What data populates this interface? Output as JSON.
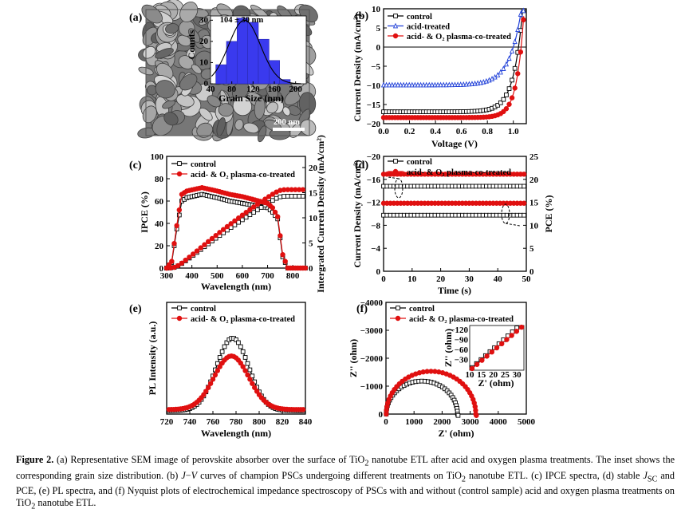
{
  "panel_labels": [
    "(a)",
    "(b)",
    "(c)",
    "(d)",
    "(e)",
    "(f)"
  ],
  "sem": {
    "inset_annotation": "104 ± 30 nm",
    "inset_xlabel": "Grain Size (nm)",
    "inset_ylabel": "Counts",
    "scale_bar": "200 nm",
    "colors": {
      "bars": "#3a3aee",
      "fit": "#000000"
    }
  },
  "series_colors": {
    "control": "#000000",
    "acid_treated": "#1f3fd8",
    "plasma": "#e01010"
  },
  "caption": {
    "figure_label": "Figure 2.",
    "parts": [
      "(a) Representative SEM image of perovskite absorber over the surface of TiO",
      "2",
      " nanotube ETL after acid and oxygen plasma treatments. The inset shows the corresponding grain size distribution. (b) ",
      "J",
      "−",
      "V",
      " curves of champion PSCs undergoing different treatments on TiO",
      "2",
      " nanotube ETL. (c) IPCE spectra, (d) stable ",
      "J",
      "SC",
      " and PCE, (e) PL spectra, and (f) Nyquist plots of electrochemical impedance spectroscopy of PSCs with and without (control sample) acid and oxygen plasma treatments on TiO",
      "2",
      " nanotube ETL."
    ]
  },
  "chart_data": [
    {
      "id": "a_inset",
      "type": "bar",
      "xlabel": "Grain Size (nm)",
      "ylabel": "Counts",
      "xlim": [
        40,
        220
      ],
      "ylim": [
        0,
        32
      ],
      "xticks": [
        40,
        80,
        120,
        160,
        200
      ],
      "yticks": [
        0,
        10,
        20,
        30
      ],
      "bins": [
        {
          "x0": 50,
          "x1": 70,
          "value": 9
        },
        {
          "x0": 70,
          "x1": 90,
          "value": 20
        },
        {
          "x0": 90,
          "x1": 110,
          "value": 31
        },
        {
          "x0": 110,
          "x1": 130,
          "value": 29
        },
        {
          "x0": 130,
          "x1": 150,
          "value": 21
        },
        {
          "x0": 150,
          "x1": 170,
          "value": 11
        },
        {
          "x0": 170,
          "x1": 190,
          "value": 2
        }
      ],
      "fit": {
        "center": 104,
        "sigma": 30,
        "peak": 30
      }
    },
    {
      "id": "b",
      "type": "line",
      "xlabel": "Voltage (V)",
      "ylabel": "Current Density (mA/cm²)",
      "xlim": [
        0,
        1.1
      ],
      "ylim": [
        -20,
        10
      ],
      "xticks": [
        0.0,
        0.2,
        0.4,
        0.6,
        0.8,
        1.0
      ],
      "yticks": [
        10,
        5,
        0,
        -5,
        -10,
        -15,
        -20
      ],
      "xtick_labels": [
        "0.0",
        "0.2",
        "0.4",
        "0.6",
        "0.8",
        "1.0"
      ],
      "series": [
        {
          "name": "control",
          "color_key": "control",
          "marker": "square",
          "jsc": -16.9,
          "voc": 1.04,
          "vt": 0.07,
          "vmax": 1.08
        },
        {
          "name": "acid-treated",
          "color_key": "acid_treated",
          "marker": "triangle",
          "jsc": -9.9,
          "voc": 1.0,
          "vt": 0.09,
          "vmax": 1.08
        },
        {
          "name": "acid- & O₂ plasma-co-treated",
          "color_key": "plasma",
          "marker": "circle",
          "jsc": -18.4,
          "voc": 1.06,
          "vt": 0.055,
          "vmax": 1.08
        }
      ]
    },
    {
      "id": "c",
      "type": "line",
      "xlabel": "Wavelength (nm)",
      "ylabel": "IPCE (%)",
      "y2label": "Intergrated Current Density (mA/cm²)",
      "xlim": [
        300,
        850
      ],
      "ylim": [
        0,
        100
      ],
      "y2lim": [
        0,
        22.22
      ],
      "xticks": [
        300,
        400,
        500,
        600,
        700,
        800
      ],
      "yticks": [
        0,
        20,
        40,
        60,
        80,
        100
      ],
      "y2ticks": [
        0,
        5,
        10,
        15,
        20
      ],
      "ipce_x": [
        300,
        320,
        340,
        360,
        380,
        400,
        420,
        440,
        460,
        500,
        550,
        600,
        650,
        700,
        720,
        740,
        760,
        780,
        800,
        820,
        850
      ],
      "series": [
        {
          "name": "control",
          "color_key": "control",
          "ipce": [
            0,
            5,
            35,
            60,
            63,
            64,
            65,
            66,
            65,
            63,
            60,
            58,
            56,
            54,
            50,
            44,
            10,
            0,
            0,
            0,
            0
          ],
          "integrated_final": 14.3
        },
        {
          "name": "acid- & O₂ plasma-co-treated",
          "color_key": "plasma",
          "ipce": [
            0,
            6,
            38,
            66,
            69,
            70,
            71,
            72,
            71,
            69,
            66,
            64,
            61,
            58,
            54,
            46,
            12,
            0,
            0,
            0,
            0
          ],
          "integrated_final": 15.6
        }
      ]
    },
    {
      "id": "d",
      "type": "line",
      "xlabel": "Time (s)",
      "ylabel": "Current Density (mA/cm²)",
      "y2label": "PCE (%)",
      "xlim": [
        0,
        50
      ],
      "ylim": [
        0,
        -20
      ],
      "y2lim": [
        0,
        25
      ],
      "xticks": [
        0,
        10,
        20,
        30,
        40,
        50
      ],
      "yticks": [
        0,
        -4,
        -8,
        -12,
        -16,
        -20
      ],
      "y2ticks": [
        0,
        5,
        10,
        15,
        20,
        25
      ],
      "series": [
        {
          "name": "control (J)",
          "color_key": "control",
          "axis": "left",
          "value": -14.8
        },
        {
          "name": "acid- & O₂ plasma-co-treated (J)",
          "color_key": "plasma",
          "axis": "left",
          "value": -16.9
        },
        {
          "name": "control (PCE)",
          "color_key": "control",
          "axis": "right",
          "value": 12.2
        },
        {
          "name": "acid- & O₂ plasma-co-treated (PCE)",
          "color_key": "plasma",
          "axis": "right",
          "value": 14.8
        }
      ],
      "legend": [
        "control",
        "acid- & O₂ plasma-co-treated"
      ]
    },
    {
      "id": "e",
      "type": "line",
      "xlabel": "Wavelength (nm)",
      "ylabel": "PL Intensity (a.u.)",
      "xlim": [
        720,
        840
      ],
      "ylim": [
        0,
        1
      ],
      "xticks": [
        720,
        740,
        760,
        780,
        800,
        820,
        840
      ],
      "series": [
        {
          "name": "control",
          "color_key": "control",
          "center": 777,
          "amp": 0.65,
          "sigma": 14,
          "base": 0.03
        },
        {
          "name": "acid- & O₂ plasma-co-treated",
          "color_key": "plasma",
          "center": 776,
          "amp": 0.48,
          "sigma": 15,
          "base": 0.04
        }
      ]
    },
    {
      "id": "f",
      "type": "scatter",
      "xlabel": "Z' (ohm)",
      "ylabel": "Z'' (ohm)",
      "xlim": [
        0,
        5000
      ],
      "ylim": [
        0,
        -4000
      ],
      "xticks": [
        0,
        1000,
        2000,
        3000,
        4000,
        5000
      ],
      "yticks": [
        0,
        -1000,
        -2000,
        -3000,
        -4000
      ],
      "series": [
        {
          "name": "control",
          "color_key": "control",
          "r0": 10,
          "r1": 2550,
          "flat": 0.93
        },
        {
          "name": "acid- & O₂ plasma-co-treated",
          "color_key": "plasma",
          "r0": 10,
          "r1": 3200,
          "flat": 0.96
        }
      ],
      "inset": {
        "xlabel": "Z' (ohm)",
        "ylabel": "Z'' (ohm)",
        "xlim": [
          10,
          33
        ],
        "ylim": [
          0,
          -135
        ],
        "xticks": [
          10,
          15,
          20,
          25,
          30
        ],
        "yticks": [
          -30,
          -60,
          -90,
          -120
        ],
        "lines": [
          {
            "color_key": "control",
            "x0": 11,
            "y0": -8,
            "x1": 30,
            "y1": -128
          },
          {
            "color_key": "plasma",
            "x0": 11,
            "y0": -5,
            "x1": 32,
            "y1": -130
          }
        ]
      }
    }
  ]
}
